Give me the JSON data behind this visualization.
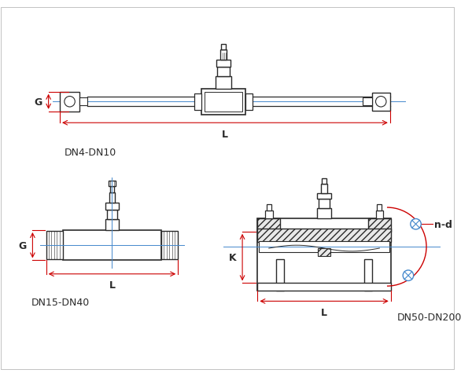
{
  "bg_color": "#ffffff",
  "line_color": "#2a2a2a",
  "red_color": "#cc0000",
  "blue_color": "#4488cc",
  "label_DN4": "DN4-DN10",
  "label_DN15": "DN15-DN40",
  "label_DN50": "DN50-DN200",
  "label_G": "G",
  "label_L": "L",
  "label_K": "K",
  "label_nd": "n-d",
  "figsize": [
    6.0,
    4.81
  ],
  "dpi": 100
}
